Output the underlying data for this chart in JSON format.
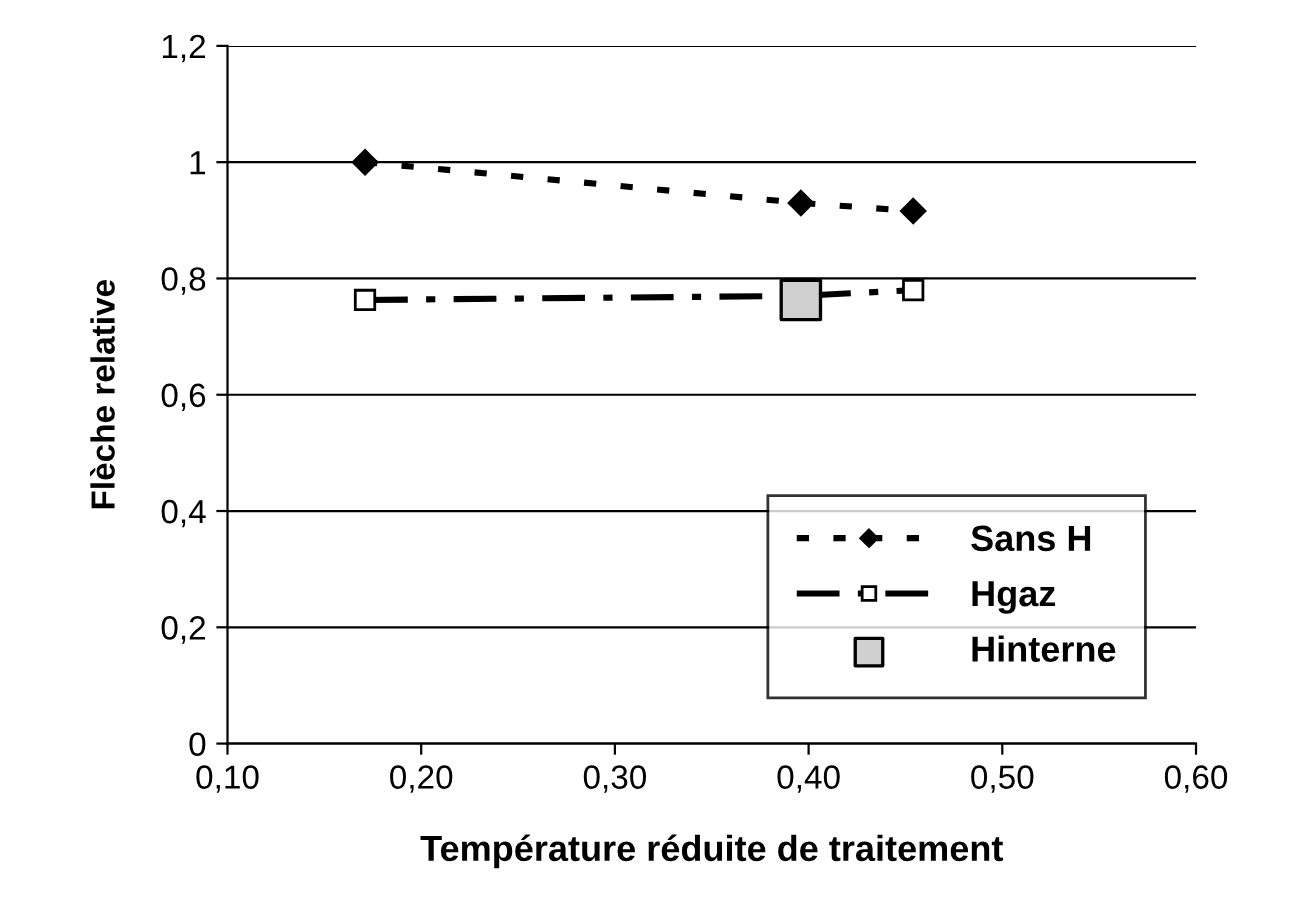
{
  "chart_data": {
    "type": "line",
    "xlabel": "Température réduite de traitement",
    "ylabel": "Flèche relative",
    "xlim": [
      0.1,
      0.6
    ],
    "xticks": [
      {
        "value": 0.1,
        "label": "0,10"
      },
      {
        "value": 0.2,
        "label": "0,20"
      },
      {
        "value": 0.3,
        "label": "0,30"
      },
      {
        "value": 0.4,
        "label": "0,40"
      },
      {
        "value": 0.5,
        "label": "0,50"
      },
      {
        "value": 0.6,
        "label": "0,60"
      }
    ],
    "ylim": [
      0,
      1.2
    ],
    "yticks": [
      0,
      {
        "value": 0.2,
        "label": "0,2"
      },
      {
        "value": 0.4,
        "label": "0,4"
      },
      {
        "value": 0.6,
        "label": "0,6"
      },
      {
        "value": 0.8,
        "label": "0,8"
      },
      1,
      {
        "value": 1.2,
        "label": "1,2"
      }
    ],
    "grid": "y",
    "legend": "bottom right",
    "series": [
      {
        "name": "Sans H",
        "color": "#000000",
        "x": [
          0.171,
          0.396,
          0.454
        ],
        "values": [
          1.0,
          0.93,
          0.916
        ],
        "marker": "diamond",
        "line_style": "dotted"
      },
      {
        "name": "Hgaz",
        "color": "#000000",
        "x": [
          0.171,
          0.396,
          0.454
        ],
        "values": [
          0.763,
          0.77,
          0.78
        ],
        "marker": "square",
        "line_style": "dashed"
      },
      {
        "name": "Hinterne",
        "color": "#d0d0d0",
        "type": "scatter",
        "x": [
          0.396
        ],
        "values": [
          0.763
        ],
        "marker": "square"
      }
    ]
  }
}
